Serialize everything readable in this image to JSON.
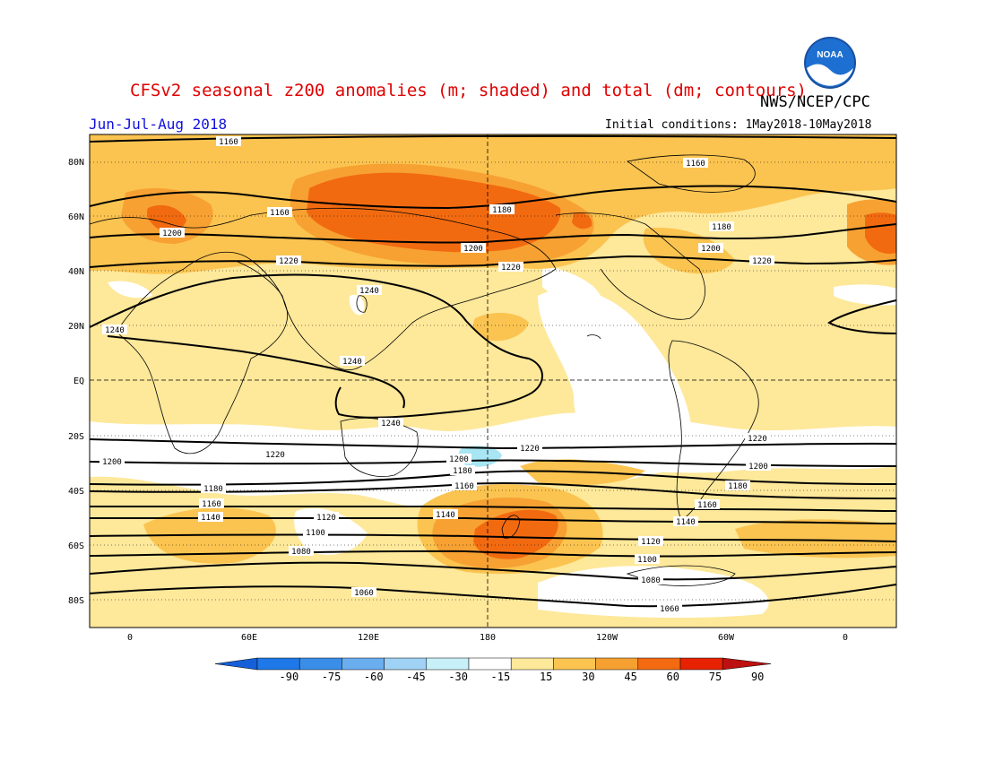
{
  "header": {
    "title": "CFSv2 seasonal z200 anomalies (m; shaded) and total (dm; contours)",
    "agency": "NWS/NCEP/CPC",
    "period": "Jun-Jul-Aug 2018",
    "initial_conditions": "Initial conditions: 1May2018-10May2018",
    "logo_text": "NOAA"
  },
  "map": {
    "lat_ticks": [
      "80N",
      "60N",
      "40N",
      "20N",
      "EQ",
      "20S",
      "40S",
      "60S",
      "80S"
    ],
    "lon_ticks": [
      "0",
      "60E",
      "120E",
      "180",
      "120W",
      "60W",
      "0"
    ]
  },
  "contour_labels": {
    "north": [
      "1160",
      "1160",
      "1160",
      "1180",
      "1180",
      "1200",
      "1200",
      "1200",
      "1220",
      "1220",
      "1220",
      "1240",
      "1240",
      "1240",
      "1240"
    ],
    "south": [
      "1220",
      "1220",
      "1220",
      "1200",
      "1200",
      "1200",
      "1180",
      "1180",
      "1180",
      "1160",
      "1160",
      "1160",
      "1140",
      "1140",
      "1140",
      "1120",
      "1120",
      "1100",
      "1100",
      "1080",
      "1080",
      "1060",
      "1060"
    ]
  },
  "colorbar": {
    "labels": [
      "-90",
      "-75",
      "-60",
      "-45",
      "-30",
      "-15",
      "15",
      "30",
      "45",
      "60",
      "75",
      "90"
    ],
    "colors": [
      "#1560d8",
      "#1e78e8",
      "#3a8ee8",
      "#6aaef0",
      "#9fd2f4",
      "#c8f0f8",
      "#ffffff",
      "#fee89a",
      "#fbc450",
      "#f5a030",
      "#f46a10",
      "#e62200",
      "#bd1010"
    ]
  },
  "anomaly_colors": {
    "c15_30": "#fee89a",
    "c30_45": "#fbc450",
    "c45_60": "#f7a133",
    "c60_75": "#f26a10",
    "neg15_30": "#a8e6f4"
  }
}
